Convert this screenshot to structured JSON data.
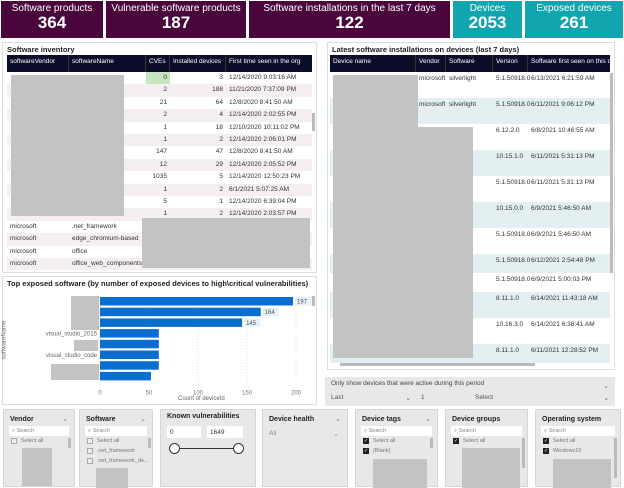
{
  "cards": [
    {
      "title": "Software products",
      "value": "364"
    },
    {
      "title": "Vulnerable software products",
      "value": "187"
    },
    {
      "title": "Software installations in the last 7 days",
      "value": "122"
    },
    {
      "title": "Devices",
      "value": "2053"
    },
    {
      "title": "Exposed devices",
      "value": "261"
    }
  ],
  "colors": {
    "purple": "#4a053c",
    "teal": "#11a5b0",
    "bar": "#0a6ed1",
    "header": "#0b0b2a"
  },
  "inventory": {
    "title": "Software inventory",
    "columns": [
      "softwareVendor",
      "softwareName",
      "CVEs",
      "Installed devices",
      "First time seen in the org"
    ],
    "rows": [
      {
        "cves": "0",
        "devices": "3",
        "first": "12/14/2020 9:03:16 AM"
      },
      {
        "cves": "2",
        "devices": "188",
        "first": "11/21/2020 7:37:09 PM"
      },
      {
        "cves": "21",
        "devices": "64",
        "first": "12/8/2020 8:41:50 AM"
      },
      {
        "cves": "2",
        "devices": "4",
        "first": "12/14/2020 2:02:55 PM"
      },
      {
        "cves": "1",
        "devices": "18",
        "first": "12/10/2020 10:11:02 PM"
      },
      {
        "cves": "1",
        "devices": "2",
        "first": "12/14/2020 2:06:01 PM"
      },
      {
        "cves": "147",
        "devices": "47",
        "first": "12/8/2020 8:41:50 AM"
      },
      {
        "cves": "12",
        "devices": "29",
        "first": "12/14/2020 2:05:52 PM"
      },
      {
        "cves": "1035",
        "devices": "5",
        "first": "12/14/2020 12:50:23 PM"
      },
      {
        "cves": "1",
        "devices": "2",
        "first": "6/1/2021 5:07:25 AM"
      },
      {
        "cves": "5",
        "devices": "1",
        "first": "12/14/2020 6:39:04 PM"
      },
      {
        "cves": "1",
        "devices": "2",
        "first": "12/14/2020 2:03:57 PM"
      }
    ],
    "named_rows": [
      {
        "vendor": "microsoft",
        "name": ".net_framework"
      },
      {
        "vendor": "microsoft",
        "name": "edge_chromium-based"
      },
      {
        "vendor": "microsoft",
        "name": "office"
      },
      {
        "vendor": "microsoft",
        "name": "office_web_components"
      }
    ]
  },
  "installs": {
    "title": "Latest software installations on devices (last 7 days)",
    "columns": [
      "Device name",
      "Vendor",
      "Software",
      "Version",
      "Software first seen on this de"
    ],
    "rows": [
      {
        "vendor": "microsoft",
        "software": "silverlight",
        "version": "5.1.50918.0",
        "first": "6/13/2021 6:21:59 AM"
      },
      {
        "vendor": "microsoft",
        "software": "silverlight",
        "version": "5.1.50918.0",
        "first": "6/11/2021 9:06:12 PM"
      },
      {
        "vendor": "",
        "software": "",
        "version": "6.12.2.0",
        "first": "6/8/2021 10:46:55 AM"
      },
      {
        "vendor": "",
        "software": "",
        "version": "10.15.1.0",
        "first": "6/11/2021 5:31:13 PM"
      },
      {
        "vendor": "",
        "software": "",
        "version": "5.1.50918.0",
        "first": "6/11/2021 5:31:13 PM"
      },
      {
        "vendor": "",
        "software": "",
        "version": "10.15.0.0",
        "first": "6/9/2021 5:46:50 AM"
      },
      {
        "vendor": "",
        "software": "",
        "version": "5.1.50918.0",
        "first": "6/9/2021 5:46:50 AM"
      },
      {
        "vendor": "",
        "software": "",
        "version": "5.1.50918.0",
        "first": "6/12/2021 2:54:48 PM"
      },
      {
        "vendor": "",
        "software": "",
        "version": "5.1.50918.0",
        "first": "6/9/2021 5:00:03 PM"
      },
      {
        "vendor": "",
        "software": "",
        "version": "8.11.1.0",
        "first": "6/14/2021 11:43:18 AM"
      },
      {
        "vendor": "",
        "software": "",
        "version": "10.16.3.0",
        "first": "6/14/2021 6:38:41 AM"
      },
      {
        "vendor": "",
        "software": "",
        "version": "8.11.1.0",
        "first": "6/11/2021 12:28:52 PM"
      }
    ]
  },
  "chart_data": {
    "type": "bar",
    "orientation": "horizontal",
    "title": "Top exposed software (by number of exposed devices to high\\critical vulnerabilities)",
    "ylabel": "softwareName",
    "xlabel": "Count of deviceId",
    "categories": [
      "",
      "",
      "",
      "visual_studio_2015",
      "",
      "visual_studio_code",
      "",
      ""
    ],
    "values": [
      197,
      164,
      145,
      60,
      60,
      60,
      60,
      52
    ],
    "data_labels": [
      "197",
      "164",
      "145",
      "",
      "",
      "",
      "",
      ""
    ],
    "xlim": [
      0,
      200
    ],
    "xticks": [
      "0",
      "50",
      "100",
      "150",
      "200"
    ],
    "grid": true
  },
  "period_filter": {
    "title": "Only show devices that were active during this period",
    "unit": "Last",
    "count": "1",
    "select": "Select"
  },
  "slicers": {
    "vendor": {
      "title": "Vendor",
      "search": "Search",
      "items": [
        "Select all"
      ]
    },
    "software": {
      "title": "Software",
      "search": "Search",
      "items": [
        "Select all",
        ".net_framework",
        ".net_framework_de..."
      ]
    },
    "vuln": {
      "title": "Known vulnerabilities",
      "min": "0",
      "max": "1649"
    },
    "health": {
      "title": "Device health",
      "value": "All"
    },
    "tags": {
      "title": "Device tags",
      "search": "Search",
      "items": [
        "Select all",
        "(Blank)"
      ]
    },
    "groups": {
      "title": "Device groups",
      "search": "Search",
      "items": [
        "Select all"
      ]
    },
    "os": {
      "title": "Operating system",
      "search": "Search",
      "items": [
        "Select all",
        "Windows10"
      ]
    }
  }
}
